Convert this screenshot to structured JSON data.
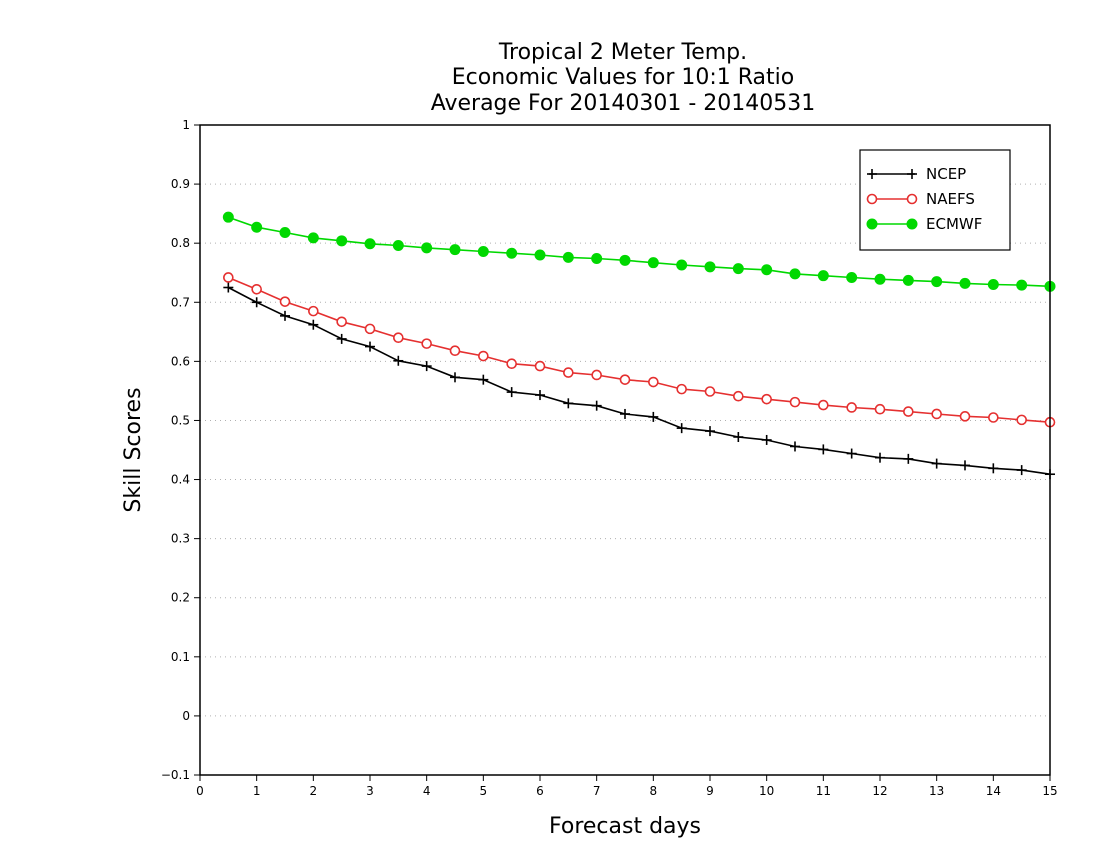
{
  "chart_data": {
    "type": "line",
    "title_lines": [
      "Tropical 2 Meter Temp.",
      "Economic Values for 10:1 Ratio",
      "Average For 20140301 - 20140531"
    ],
    "xlabel": "Forecast days",
    "ylabel": "Skill Scores",
    "xlim": [
      0,
      15
    ],
    "ylim": [
      -0.1,
      1
    ],
    "x_ticks": [
      "0",
      "1",
      "2",
      "3",
      "4",
      "5",
      "6",
      "7",
      "8",
      "9",
      "10",
      "11",
      "12",
      "13",
      "14",
      "15"
    ],
    "y_ticks": [
      "−0.1",
      "0",
      "0.1",
      "0.2",
      "0.3",
      "0.4",
      "0.5",
      "0.6",
      "0.7",
      "0.8",
      "0.9",
      "1"
    ],
    "grid": "horizontal dotted",
    "legend_position": "top-right",
    "x": [
      0.5,
      1,
      1.5,
      2,
      2.5,
      3,
      3.5,
      4,
      4.5,
      5,
      5.5,
      6,
      6.5,
      7,
      7.5,
      8,
      8.5,
      9,
      9.5,
      10,
      10.5,
      11,
      11.5,
      12,
      12.5,
      13,
      13.5,
      14,
      14.5,
      15
    ],
    "series": [
      {
        "name": "NCEP",
        "color": "#000000",
        "marker": "plus",
        "values": [
          0.725,
          0.7,
          0.677,
          0.662,
          0.638,
          0.625,
          0.601,
          0.592,
          0.573,
          0.569,
          0.548,
          0.543,
          0.529,
          0.525,
          0.511,
          0.506,
          0.487,
          0.482,
          0.472,
          0.467,
          0.456,
          0.451,
          0.444,
          0.437,
          0.435,
          0.427,
          0.424,
          0.419,
          0.416,
          0.409
        ]
      },
      {
        "name": "NAEFS",
        "color": "#e53030",
        "marker": "open-circle",
        "values": [
          0.742,
          0.722,
          0.701,
          0.685,
          0.667,
          0.655,
          0.64,
          0.63,
          0.618,
          0.609,
          0.596,
          0.592,
          0.581,
          0.577,
          0.569,
          0.565,
          0.553,
          0.549,
          0.541,
          0.536,
          0.531,
          0.526,
          0.522,
          0.519,
          0.515,
          0.511,
          0.507,
          0.505,
          0.501,
          0.497
        ]
      },
      {
        "name": "ECMWF",
        "color": "#00d800",
        "marker": "filled-circle",
        "values": [
          0.844,
          0.827,
          0.818,
          0.809,
          0.804,
          0.799,
          0.796,
          0.792,
          0.789,
          0.786,
          0.783,
          0.78,
          0.776,
          0.774,
          0.771,
          0.767,
          0.763,
          0.76,
          0.757,
          0.755,
          0.748,
          0.745,
          0.742,
          0.739,
          0.737,
          0.735,
          0.732,
          0.73,
          0.729,
          0.727
        ]
      }
    ]
  }
}
